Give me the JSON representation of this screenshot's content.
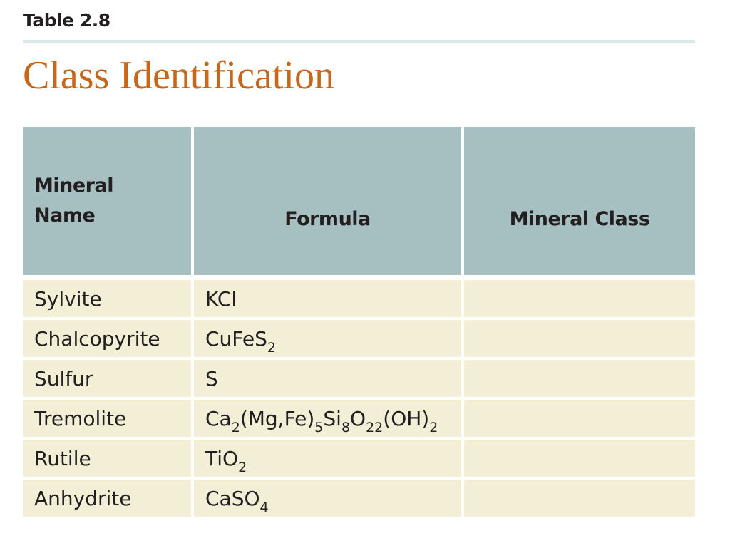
{
  "label": "Table 2.8",
  "title": "Class Identification",
  "colors": {
    "title": "#c8661a",
    "header_bg": "#a6c0c2",
    "row_bg": "#f3efd6",
    "rule": "#d9e8e8"
  },
  "table": {
    "headers": [
      "Mineral Name",
      "Formula",
      "Mineral Class"
    ],
    "rows": [
      {
        "name": "Sylvite",
        "formula": [
          {
            "t": "KCl"
          }
        ],
        "class": ""
      },
      {
        "name": "Chalcopyrite",
        "formula": [
          {
            "t": "CuFeS"
          },
          {
            "sub": "2"
          }
        ],
        "class": ""
      },
      {
        "name": "Sulfur",
        "formula": [
          {
            "t": "S"
          }
        ],
        "class": ""
      },
      {
        "name": "Tremolite",
        "formula": [
          {
            "t": "Ca"
          },
          {
            "sub": "2"
          },
          {
            "t": "(Mg,Fe)"
          },
          {
            "sub": "5"
          },
          {
            "t": "Si"
          },
          {
            "sub": "8"
          },
          {
            "t": "O"
          },
          {
            "sub": "22"
          },
          {
            "t": "(OH)"
          },
          {
            "sub": "2"
          }
        ],
        "class": ""
      },
      {
        "name": "Rutile",
        "formula": [
          {
            "t": "TiO"
          },
          {
            "sub": "2"
          }
        ],
        "class": ""
      },
      {
        "name": "Anhydrite",
        "formula": [
          {
            "t": "CaSO"
          },
          {
            "sub": "4"
          }
        ],
        "class": ""
      }
    ]
  }
}
